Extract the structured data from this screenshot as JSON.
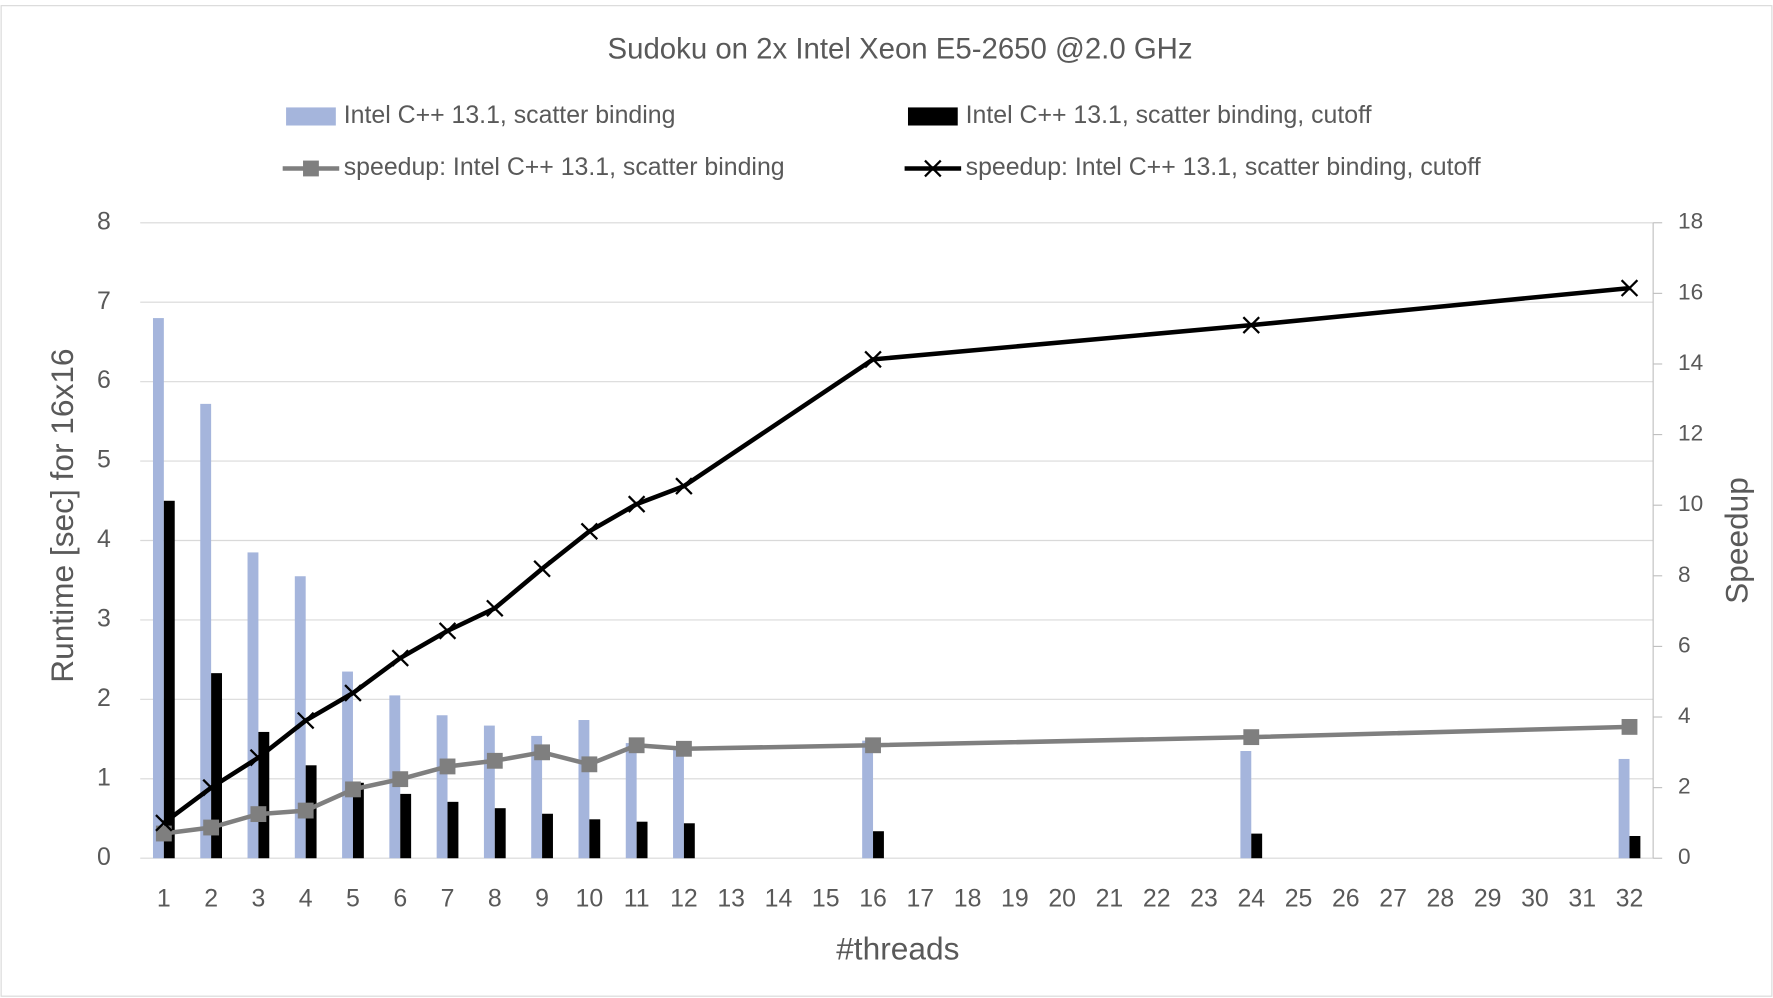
{
  "chart_data": {
    "type": "bar",
    "title": "Sudoku on 2x Intel Xeon E5-2650 @2.0 GHz",
    "x_label": "#threads",
    "y_label": "Runtime [sec] for 16x16",
    "y2_label": "Speedup",
    "x": [
      1,
      2,
      3,
      4,
      5,
      6,
      7,
      8,
      9,
      10,
      11,
      12,
      16,
      24,
      32
    ],
    "xlim": [
      0.5,
      32.5
    ],
    "xticks": [
      1,
      2,
      3,
      4,
      5,
      6,
      7,
      8,
      9,
      10,
      11,
      12,
      13,
      14,
      15,
      16,
      17,
      18,
      19,
      20,
      21,
      22,
      23,
      24,
      25,
      26,
      27,
      28,
      29,
      30,
      31,
      32
    ],
    "ylim": [
      0,
      8
    ],
    "yticks": [
      0,
      1,
      2,
      3,
      4,
      5,
      6,
      7,
      8
    ],
    "y2lim": [
      0,
      18
    ],
    "y2ticks": [
      0,
      2,
      4,
      6,
      8,
      10,
      12,
      14,
      16,
      18
    ],
    "grid": true,
    "legend": "top",
    "series": [
      {
        "name": "Intel C++ 13.1, scatter binding",
        "type": "bar",
        "color": "#a5b5dc",
        "values": [
          6.8,
          5.72,
          3.85,
          3.55,
          2.35,
          2.05,
          1.8,
          1.67,
          1.54,
          1.74,
          1.45,
          1.4,
          1.48,
          1.35,
          1.25
        ]
      },
      {
        "name": "Intel C++ 13.1, scatter binding, cutoff",
        "type": "bar",
        "color": "#000000",
        "values": [
          4.5,
          2.33,
          1.59,
          1.17,
          0.95,
          0.81,
          0.71,
          0.63,
          0.56,
          0.49,
          0.46,
          0.44,
          0.34,
          0.31,
          0.28
        ]
      },
      {
        "name": "speedup: Intel C++ 13.1, scatter binding",
        "type": "line",
        "axis": "y2",
        "marker": "square",
        "color": "#7f7f7f",
        "values": [
          0.7,
          0.87,
          1.25,
          1.35,
          1.95,
          2.24,
          2.6,
          2.76,
          3.0,
          2.66,
          3.2,
          3.1,
          3.2,
          3.43,
          3.72
        ]
      },
      {
        "name": "speedup: Intel C++ 13.1, scatter binding, cutoff",
        "type": "line",
        "axis": "y2",
        "marker": "x",
        "color": "#000000",
        "values": [
          1.0,
          2.0,
          2.85,
          3.9,
          4.68,
          5.67,
          6.44,
          7.08,
          8.2,
          9.26,
          10.03,
          10.54,
          14.13,
          15.1,
          16.15
        ]
      }
    ]
  }
}
